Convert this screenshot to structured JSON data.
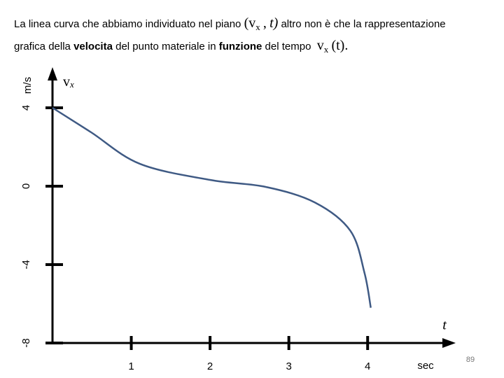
{
  "caption": {
    "line1": [
      "La linea curva che abbiamo individuato nel piano",
      "(v",
      "x",
      ",",
      "t)",
      "altro non è che la rappresentazione"
    ],
    "line2": [
      "grafica della",
      "velocita",
      "del punto materiale in",
      "funzione",
      "del tempo",
      "v",
      "x",
      "(t)."
    ]
  },
  "page_number": "89",
  "chart_data": {
    "type": "line",
    "y_label": "m/s",
    "x_label": "t",
    "x_unit": "sec",
    "series_label": [
      "v",
      "x"
    ],
    "x": [
      0,
      0.49,
      1.11,
      2,
      2.71,
      3.33,
      3.78,
      3.96,
      4.04
    ],
    "values": [
      4,
      2.75,
      1.14,
      0.32,
      -0.04,
      -0.83,
      -2.27,
      -4.42,
      -6.2
    ],
    "color": "#3f5a84",
    "xlim": [
      0,
      5.1
    ],
    "xticks": [
      1,
      2,
      3,
      4
    ],
    "ylim": [
      -8,
      6
    ],
    "yticks": [
      -8,
      -4,
      0,
      4
    ]
  }
}
